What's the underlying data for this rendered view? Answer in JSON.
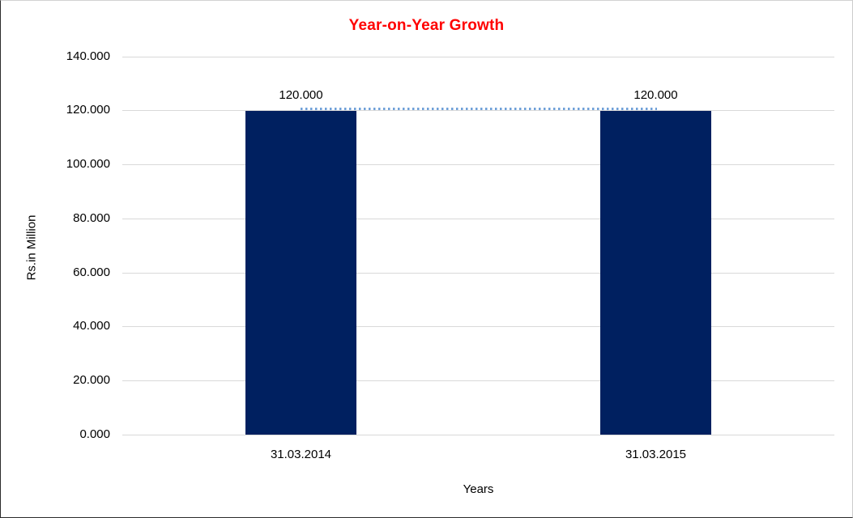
{
  "chart_data": {
    "type": "bar",
    "title": "Year-on-Year Growth",
    "title_color": "#ff0000",
    "categories": [
      "31.03.2014",
      "31.03.2015"
    ],
    "values": [
      120.0,
      120.0
    ],
    "data_labels": [
      "120.000",
      "120.000"
    ],
    "xlabel": "Years",
    "ylabel": "Rs.in Million",
    "ylim": [
      0,
      140
    ],
    "ytick_interval": 20,
    "ytick_labels": [
      "140.000",
      "120.000",
      "100.000",
      "80.000",
      "60.000",
      "40.000",
      "20.000",
      "0.000"
    ],
    "grid": true,
    "gridline_color": "#d9d9d9",
    "legend_position": "none",
    "bar_color": "#002060",
    "trendline": {
      "style": "dotted",
      "color": "#6fa0d8",
      "from_value": 120.0,
      "to_value": 120.0
    }
  }
}
